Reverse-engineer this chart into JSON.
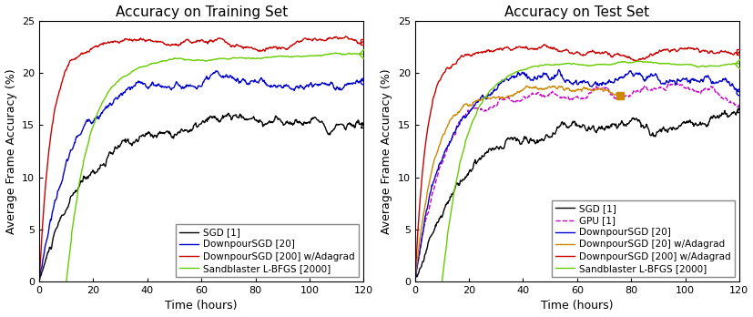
{
  "left_title": "Accuracy on Training Set",
  "right_title": "Accuracy on Test Set",
  "xlabel": "Time (hours)",
  "ylabel": "Average Frame Accuracy (%)",
  "xlim": [
    0,
    120
  ],
  "ylim": [
    0,
    25
  ],
  "yticks": [
    0,
    5,
    10,
    15,
    20,
    25
  ],
  "xticks": [
    0,
    20,
    40,
    60,
    80,
    100,
    120
  ],
  "background_color": "#ffffff",
  "title_fontsize": 11,
  "label_fontsize": 9,
  "tick_fontsize": 8,
  "legend_fontsize": 7.5,
  "lw": 1.0,
  "ms": 5
}
